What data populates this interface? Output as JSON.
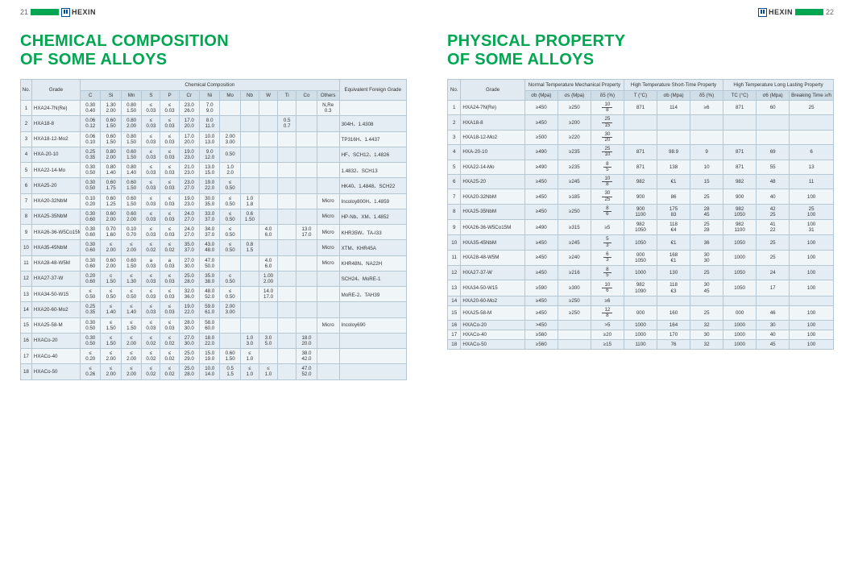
{
  "logo_text": "HEXIN",
  "left": {
    "page_num": "21",
    "title_l1": "CHEMICAL COMPOSITION",
    "title_l2": "OF SOME ALLOYS",
    "hdr": {
      "no": "No.",
      "grade": "Grade",
      "cc": "Chemical Composition",
      "equiv": "Equivalent Foreign Grade",
      "c": "C",
      "si": "Si",
      "mn": "Mn",
      "s": "S",
      "p": "P",
      "cr": "Cr",
      "ni": "Ni",
      "mo": "Mo",
      "nb": "Nb",
      "w": "W",
      "ti": "Ti",
      "co": "Co",
      "others": "Others"
    },
    "rows": [
      {
        "n": "1",
        "g": "HXA24-7N(Re)",
        "c": "0.30 0.40",
        "si": "1.30 2.00",
        "mn": "0.80 1.50",
        "s": "≤ 0.03",
        "p": "≤ 0.03",
        "cr": "23.0 26.0",
        "ni": "7.0 9.0",
        "mo": "",
        "nb": "",
        "w": "",
        "ti": "",
        "co": "",
        "oth": "N,Re 0.3",
        "eq": ""
      },
      {
        "n": "2",
        "g": "HXA18-8",
        "c": "0.06 0.12",
        "si": "0.60 1.50",
        "mn": "0.80 2.00",
        "s": "≤ 0.03",
        "p": "≤ 0.03",
        "cr": "17.0 20.0",
        "ni": "8.0 11.0",
        "mo": "",
        "nb": "",
        "w": "",
        "ti": "0.5 0.7",
        "co": "",
        "oth": "",
        "eq": "304H、1.4308"
      },
      {
        "n": "3",
        "g": "HXA18-12-Mo2",
        "c": "0.06 0.10",
        "si": "0.60 1.50",
        "mn": "0.80 1.50",
        "s": "≤ 0.03",
        "p": "≤ 0.03",
        "cr": "17.0 20.0",
        "ni": "10.0 13.0",
        "mo": "2.00 3.00",
        "nb": "",
        "w": "",
        "ti": "",
        "co": "",
        "oth": "",
        "eq": "TP316H、1.4437"
      },
      {
        "n": "4",
        "g": "HXA-20-10",
        "c": "0.25 0.35",
        "si": "0.80 2.00",
        "mn": "0.60 1.50",
        "s": "≤ 0.03",
        "p": "≤ 0.03",
        "cr": "19.0 23.0",
        "ni": "9.0 12.0",
        "mo": "0.50",
        "nb": "",
        "w": "",
        "ti": "",
        "co": "",
        "oth": "",
        "eq": "HF、SCH12、1.4826"
      },
      {
        "n": "5",
        "g": "HXA22-14-Mo",
        "c": "0.30 0.50",
        "si": "0.80 1.40",
        "mn": "0.80 1.40",
        "s": "≤ 0.03",
        "p": "≤ 0.03",
        "cr": "21.0 23.0",
        "ni": "13.0 15.0",
        "mo": "1.0 2.0",
        "nb": "",
        "w": "",
        "ti": "",
        "co": "",
        "oth": "",
        "eq": "1.4832、SCH13"
      },
      {
        "n": "6",
        "g": "HXA25-20",
        "c": "0.30 0.50",
        "si": "0.60 1.75",
        "mn": "0.60 1.50",
        "s": "≤ 0.03",
        "p": "≤ 0.03",
        "cr": "23.0 27.0",
        "ni": "19.0 22.0",
        "mo": "≤ 0.50",
        "nb": "",
        "w": "",
        "ti": "",
        "co": "",
        "oth": "",
        "eq": "HK40、1.4848、SCH22"
      },
      {
        "n": "7",
        "g": "HXA20-32NbM",
        "c": "0.10 0.20",
        "si": "0.60 1.25",
        "mn": "0.60 1.50",
        "s": "≤ 0.03",
        "p": "≤ 0.03",
        "cr": "19.0 23.0",
        "ni": "30.0 35.0",
        "mo": "≤ 0.50",
        "nb": "1.0 1.8",
        "w": "",
        "ti": "",
        "co": "",
        "oth": "Micro",
        "eq": "Incoloy800H、1.4859"
      },
      {
        "n": "8",
        "g": "HXA25-35NbM",
        "c": "0.30 0.60",
        "si": "0.60 2.00",
        "mn": "0.60 2.00",
        "s": "≤ 0.03",
        "p": "≤ 0.03",
        "cr": "24.0 27.0",
        "ni": "33.0 37.0",
        "mo": "≤ 0.50",
        "nb": "0.6 1.50",
        "w": "",
        "ti": "",
        "co": "",
        "oth": "Micro",
        "eq": "HP-Nb、XM、1.4852"
      },
      {
        "n": "9",
        "g": "HXA26-36-W5Co15M",
        "c": "0.30 0.60",
        "si": "0.70 1.60",
        "mn": "0.10 0.70",
        "s": "≤ 0.03",
        "p": "≤ 0.03",
        "cr": "24.0 27.0",
        "ni": "34.0 37.0",
        "mo": "≤ 0.50",
        "nb": "",
        "w": "4.0 6.0",
        "ti": "",
        "co": "13.0 17.0",
        "oth": "Micro",
        "eq": "KHR35W、TA-I33"
      },
      {
        "n": "10",
        "g": "HXA35-45NbM",
        "c": "0.30 0.60",
        "si": "≤ 2.00",
        "mn": "≤ 2.00",
        "s": "≤ 0.02",
        "p": "≤ 0.02",
        "cr": "35.0 37.0",
        "ni": "43.0 48.0",
        "mo": "≤ 0.50",
        "nb": "0.8 1.5",
        "w": "",
        "ti": "",
        "co": "",
        "oth": "Micro",
        "eq": "XTM、KHR45A"
      },
      {
        "n": "11",
        "g": "HXA28-48-W5M",
        "c": "0.30 0.60",
        "si": "0.60 2.00",
        "mn": "0.60 1.50",
        "s": "a 0.03",
        "p": "a 0.03",
        "cr": "27.0 30.0",
        "ni": "47.0 50.0",
        "mo": "",
        "nb": "",
        "w": "4.0 6.0",
        "ti": "",
        "co": "",
        "oth": "Micro",
        "eq": "KHR48N、NA22H"
      },
      {
        "n": "12",
        "g": "HXA27-37-W",
        "c": "0.20 0.60",
        "si": "c 1.50",
        "mn": "≤ 1.30",
        "s": "≤ 0.03",
        "p": "≤ 0.03",
        "cr": "25.0 28.0",
        "ni": "35.0 38.0",
        "mo": "c 0.50",
        "nb": "",
        "w": "1.00 2.00",
        "ti": "",
        "co": "",
        "oth": "",
        "eq": "SCH24、MoRE-1"
      },
      {
        "n": "13",
        "g": "HXA34-50-W15",
        "c": "≤ 0.50",
        "si": "≤ 0.50",
        "mn": "≤ 0.50",
        "s": "≤ 0.03",
        "p": "≤ 0.03",
        "cr": "32.0 36.0",
        "ni": "48.0 52.0",
        "mo": "≤ 0.50",
        "nb": "",
        "w": "14.0 17.0",
        "ti": "",
        "co": "",
        "oth": "",
        "eq": "MoRE-2、TAH39"
      },
      {
        "n": "14",
        "g": "HXA20-60-Mo2",
        "c": "0.25 0.35",
        "si": "≤ 1.40",
        "mn": "≤ 1.40",
        "s": "≤ 0.03",
        "p": "≤ 0.03",
        "cr": "19.0 22.0",
        "ni": "59.0 61.0",
        "mo": "2.00 3.00",
        "nb": "",
        "w": "",
        "ti": "",
        "co": "",
        "oth": "",
        "eq": ""
      },
      {
        "n": "15",
        "g": "HXA25-58-M",
        "c": "0.30 0.50",
        "si": "≤ 1.50",
        "mn": "≤ 1.50",
        "s": "≤ 0.03",
        "p": "≤ 0.03",
        "cr": "28.0 30.0",
        "ni": "58.0 60.0",
        "mo": "",
        "nb": "",
        "w": "",
        "ti": "",
        "co": "",
        "oth": "Micro",
        "eq": "Incoloy690"
      },
      {
        "n": "16",
        "g": "HXACo-20",
        "c": "0.30 0.50",
        "si": "≤ 1.50",
        "mn": "≤ 2.00",
        "s": "≤ 0.02",
        "p": "≤ 0.02",
        "cr": "27.0 30.0",
        "ni": "18.0 22.0",
        "mo": "",
        "nb": "1.0 3.0",
        "w": "3.0 5.0",
        "ti": "",
        "co": "18.0 20.0",
        "oth": "",
        "eq": ""
      },
      {
        "n": "17",
        "g": "HXACo-40",
        "c": "≤ 0.20",
        "si": "≤ 2.00",
        "mn": "≤ 2.00",
        "s": "≤ 0.02",
        "p": "≤ 0.02",
        "cr": "25.0 29.0",
        "ni": "15.0 19.0",
        "mo": "0.60 1.50",
        "nb": "≤ 1.0",
        "w": "",
        "ti": "",
        "co": "38.0 42.0",
        "oth": "",
        "eq": ""
      },
      {
        "n": "18",
        "g": "HXACo-50",
        "c": "≤ 0.26",
        "si": "≤ 2.00",
        "mn": "≤ 2.00",
        "s": "≤ 0.02",
        "p": "≤ 0.02",
        "cr": "25.0 28.0",
        "ni": "10.0 14.0",
        "mo": "0.5 1.5",
        "nb": "≤ 1.0",
        "w": "≤ 1.0",
        "ti": "",
        "co": "47.0 52.0",
        "oth": "",
        "eq": ""
      }
    ]
  },
  "right": {
    "page_num": "22",
    "title_l1": "PHYSICAL PROPERTY",
    "title_l2": "OF SOME ALLOYS",
    "hdr": {
      "no": "No.",
      "grade": "Grade",
      "nt": "Normal Temperature Mechanical Property",
      "st": "High Temperature Short-Time Property",
      "lg": "High Temperature Long Lasting Property",
      "ob": "σb (Mpa)",
      "os": "σs (Mpa)",
      "d5": "δ5 (%)",
      "t": "T (°C)",
      "cb": "σb (Mpa)",
      "d5b": "δ5 (%)",
      "tc": "TC (°C)",
      "o6": "σ6 (Mpa)",
      "bt": "Breaking Time ≥/h"
    },
    "rows": [
      {
        "n": "1",
        "g": "HXA24-7N(Re)",
        "ob": "≥450",
        "os": "≥250",
        "d5": "10/8",
        "t": "871",
        "cb": "114",
        "d": "≥6",
        "tc": "871",
        "o6": "60",
        "bt": "25"
      },
      {
        "n": "2",
        "g": "HXA18-8",
        "ob": "≥450",
        "os": "≥200",
        "d5": "25/15",
        "t": "",
        "cb": "",
        "d": "",
        "tc": "",
        "o6": "",
        "bt": ""
      },
      {
        "n": "3",
        "g": "HXA18-12-Mo2",
        "ob": "≥500",
        "os": "≥220",
        "d5": "30/20",
        "t": "",
        "cb": "",
        "d": "",
        "tc": "",
        "o6": "",
        "bt": ""
      },
      {
        "n": "4",
        "g": "HXA-20-10",
        "ob": "≥490",
        "os": "≥235",
        "d5": "25/10",
        "t": "871",
        "cb": "98.9",
        "d": "9",
        "tc": "871",
        "o6": "69",
        "bt": "6"
      },
      {
        "n": "5",
        "g": "HXA22-14-Mo",
        "ob": "≥490",
        "os": "≥235",
        "d5": "8/5",
        "t": "871",
        "cb": "138",
        "d": "10",
        "tc": "871",
        "o6": "55",
        "bt": "13"
      },
      {
        "n": "6",
        "g": "HXA25-20",
        "ob": "≥450",
        "os": "≥245",
        "d5": "10/8",
        "t": "982",
        "cb": "€1",
        "d": "15",
        "tc": "982",
        "o6": "48",
        "bt": "11"
      },
      {
        "n": "7",
        "g": "HXA20-32NbM",
        "ob": "≥450",
        "os": "≥185",
        "d5": "30/25",
        "t": "900",
        "cb": "86",
        "d": "25",
        "tc": "900",
        "o6": "40",
        "bt": "100"
      },
      {
        "n": "8",
        "g": "HXA25-35NbM",
        "ob": "≥450",
        "os": "≥250",
        "d5": "8/6",
        "t": "900 1100",
        "cb": "175 83",
        "d": "28 45",
        "tc": "982 1050",
        "o6": "42 25",
        "bt": "25 100"
      },
      {
        "n": "9",
        "g": "HXA26-36-W5Co15M",
        "ob": "≥490",
        "os": "≥315",
        "d5": "≥5",
        "t": "982 1050",
        "cb": "118 €4",
        "d": "25 28",
        "tc": "982 1100",
        "o6": "41 22",
        "bt": "100 31"
      },
      {
        "n": "10",
        "g": "HXA35-45NbM",
        "ob": "≥450",
        "os": "≥245",
        "d5": "5/3",
        "t": "1050",
        "cb": "€1",
        "d": "36",
        "tc": "1050",
        "o6": "25",
        "bt": "100"
      },
      {
        "n": "11",
        "g": "HXA28-48-W5M",
        "ob": "≥450",
        "os": "≥240",
        "d5": "6/3",
        "t": "000 1050",
        "cb": "168 €1",
        "d": "30 30",
        "tc": "1000",
        "o6": "25",
        "bt": "100"
      },
      {
        "n": "12",
        "g": "HXA27-37-W",
        "ob": "≥450",
        "os": "≥216",
        "d5": "8/5",
        "t": "1000",
        "cb": "130",
        "d": "25",
        "tc": "1050",
        "o6": "24",
        "bt": "100"
      },
      {
        "n": "13",
        "g": "HXA34-50-W15",
        "ob": "≥590",
        "os": "≥300",
        "d5": "10/6",
        "t": "982 1090",
        "cb": "118 €3",
        "d": "30 45",
        "tc": "1050",
        "o6": "17",
        "bt": "100"
      },
      {
        "n": "14",
        "g": "HXA20-60-Mo2",
        "ob": "≥450",
        "os": "≥250",
        "d5": "≥6",
        "t": "",
        "cb": "",
        "d": "",
        "tc": "",
        "o6": "",
        "bt": ""
      },
      {
        "n": "15",
        "g": "HXA25-58-M",
        "ob": "≥450",
        "os": "≥250",
        "d5": "12/8",
        "t": "000",
        "cb": "160",
        "d": "25",
        "tc": "000",
        "o6": "46",
        "bt": "100"
      },
      {
        "n": "16",
        "g": "HXACo-20",
        "ob": ">450",
        "os": "",
        "d5": ">5",
        "t": "1000",
        "cb": "164",
        "d": "32",
        "tc": "1000",
        "o6": "30",
        "bt": "100"
      },
      {
        "n": "17",
        "g": "HXACo-40",
        "ob": "≥560",
        "os": "",
        "d5": "≥20",
        "t": "1000",
        "cb": "170",
        "d": "30",
        "tc": "1000",
        "o6": "40",
        "bt": "100"
      },
      {
        "n": "18",
        "g": "HXACo-50",
        "ob": "≥560",
        "os": "",
        "d5": "≥15",
        "t": "1100",
        "cb": "76",
        "d": "32",
        "tc": "1000",
        "o6": "45",
        "bt": "100"
      }
    ]
  }
}
